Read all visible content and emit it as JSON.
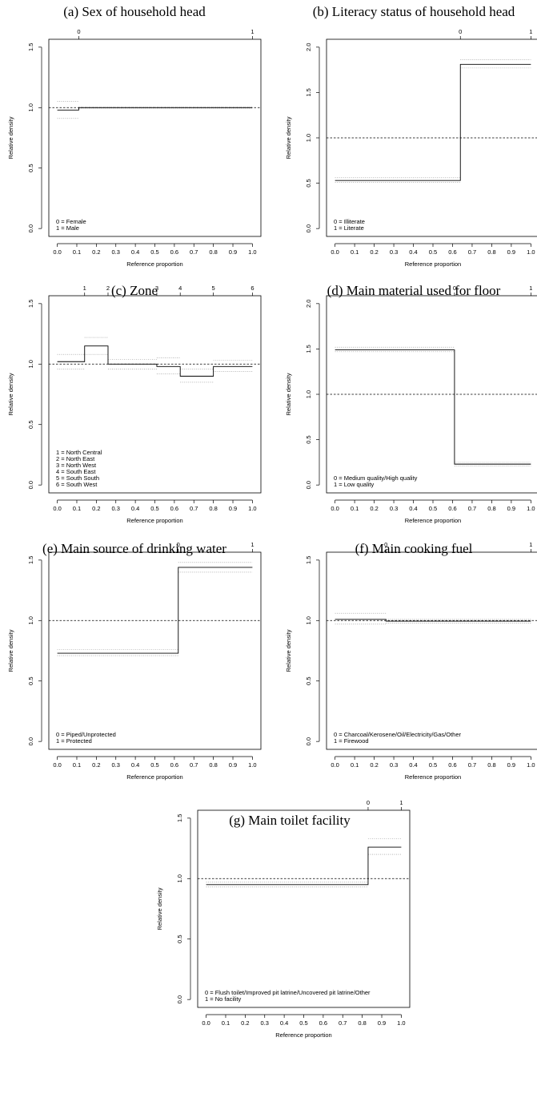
{
  "chart_data": [
    {
      "type": "step",
      "title": "(a) Sex of household head",
      "xlabel": "Reference proportion",
      "ylabel": "Relative density",
      "xlim": [
        0,
        1
      ],
      "ylim": [
        0,
        1.5
      ],
      "x_ticks": [
        "0.0",
        "0.1",
        "0.2",
        "0.3",
        "0.4",
        "0.5",
        "0.6",
        "0.7",
        "0.8",
        "0.9",
        "1.0"
      ],
      "y_ticks": [
        "0.0",
        "0.5",
        "1.0",
        "1.5"
      ],
      "top_axis": {
        "labels": [
          "0",
          "1"
        ],
        "positions": [
          0.11,
          1.0
        ]
      },
      "reference_line": 1.0,
      "steps": [
        {
          "x0": 0.0,
          "x1": 0.11,
          "y": 0.98,
          "lo": 0.91,
          "hi": 1.05
        },
        {
          "x0": 0.11,
          "x1": 1.0,
          "y": 1.0,
          "lo": 0.995,
          "hi": 1.005
        }
      ],
      "legend": [
        "0 = Female",
        "1 = Male"
      ]
    },
    {
      "type": "step",
      "title": "(b) Literacy status of household head",
      "xlabel": "Reference proportion",
      "ylabel": "Relative density",
      "xlim": [
        0,
        1
      ],
      "ylim": [
        0,
        2.0
      ],
      "x_ticks": [
        "0.0",
        "0.1",
        "0.2",
        "0.3",
        "0.4",
        "0.5",
        "0.6",
        "0.7",
        "0.8",
        "0.9",
        "1.0"
      ],
      "y_ticks": [
        "0.0",
        "0.5",
        "1.0",
        "1.5",
        "2.0"
      ],
      "top_axis": {
        "labels": [
          "0",
          "1"
        ],
        "positions": [
          0.64,
          1.0
        ]
      },
      "reference_line": 1.0,
      "steps": [
        {
          "x0": 0.0,
          "x1": 0.64,
          "y": 0.53,
          "lo": 0.51,
          "hi": 0.56
        },
        {
          "x0": 0.64,
          "x1": 1.0,
          "y": 1.81,
          "lo": 1.77,
          "hi": 1.86
        }
      ],
      "legend": [
        "0 = Illiterate",
        "1 = Literate"
      ]
    },
    {
      "type": "step",
      "title": "(c) Zone",
      "xlabel": "Reference proportion",
      "ylabel": "Relative density",
      "xlim": [
        0,
        1
      ],
      "ylim": [
        0,
        1.5
      ],
      "x_ticks": [
        "0.0",
        "0.1",
        "0.2",
        "0.3",
        "0.4",
        "0.5",
        "0.6",
        "0.7",
        "0.8",
        "0.9",
        "1.0"
      ],
      "y_ticks": [
        "0.0",
        "0.5",
        "1.0",
        "1.5"
      ],
      "top_axis": {
        "labels": [
          "1",
          "2",
          "3",
          "4",
          "5",
          "6"
        ],
        "positions": [
          0.14,
          0.26,
          0.51,
          0.63,
          0.8,
          1.0
        ]
      },
      "reference_line": 1.0,
      "steps": [
        {
          "x0": 0.0,
          "x1": 0.14,
          "y": 1.02,
          "lo": 0.96,
          "hi": 1.08
        },
        {
          "x0": 0.14,
          "x1": 0.26,
          "y": 1.15,
          "lo": 1.08,
          "hi": 1.22
        },
        {
          "x0": 0.26,
          "x1": 0.51,
          "y": 1.0,
          "lo": 0.96,
          "hi": 1.04
        },
        {
          "x0": 0.51,
          "x1": 0.63,
          "y": 0.98,
          "lo": 0.92,
          "hi": 1.05
        },
        {
          "x0": 0.63,
          "x1": 0.8,
          "y": 0.9,
          "lo": 0.85,
          "hi": 0.96
        },
        {
          "x0": 0.8,
          "x1": 1.0,
          "y": 0.98,
          "lo": 0.94,
          "hi": 1.03
        }
      ],
      "legend": [
        "1 = North Central",
        "2 = North East",
        "3 = North West",
        "4 = South East",
        "5 = South South",
        "6 = South West"
      ]
    },
    {
      "type": "step",
      "title": "(d) Main material used for floor",
      "xlabel": "Reference proportion",
      "ylabel": "Relative density",
      "xlim": [
        0,
        1
      ],
      "ylim": [
        0,
        2.0
      ],
      "x_ticks": [
        "0.0",
        "0.1",
        "0.2",
        "0.3",
        "0.4",
        "0.5",
        "0.6",
        "0.7",
        "0.8",
        "0.9",
        "1.0"
      ],
      "y_ticks": [
        "0.0",
        "0.5",
        "1.0",
        "1.5",
        "2.0"
      ],
      "top_axis": {
        "labels": [
          "0",
          "1"
        ],
        "positions": [
          0.61,
          1.0
        ]
      },
      "reference_line": 1.0,
      "steps": [
        {
          "x0": 0.0,
          "x1": 0.61,
          "y": 1.49,
          "lo": 1.47,
          "hi": 1.52
        },
        {
          "x0": 0.61,
          "x1": 1.0,
          "y": 0.23,
          "lo": 0.21,
          "hi": 0.25
        }
      ],
      "legend": [
        "0 = Medium quality/High quality",
        "1 = Low quality"
      ]
    },
    {
      "type": "step",
      "title": "(e) Main source of drinking water",
      "xlabel": "Reference proportion",
      "ylabel": "Relative density",
      "xlim": [
        0,
        1
      ],
      "ylim": [
        0,
        1.5
      ],
      "x_ticks": [
        "0.0",
        "0.1",
        "0.2",
        "0.3",
        "0.4",
        "0.5",
        "0.6",
        "0.7",
        "0.8",
        "0.9",
        "1.0"
      ],
      "y_ticks": [
        "0.0",
        "0.5",
        "1.0",
        "1.5"
      ],
      "top_axis": {
        "labels": [
          "0",
          "1"
        ],
        "positions": [
          0.62,
          1.0
        ]
      },
      "reference_line": 1.0,
      "steps": [
        {
          "x0": 0.0,
          "x1": 0.62,
          "y": 0.73,
          "lo": 0.71,
          "hi": 0.76
        },
        {
          "x0": 0.62,
          "x1": 1.0,
          "y": 1.44,
          "lo": 1.4,
          "hi": 1.48
        }
      ],
      "legend": [
        "0 = Piped/Unprotected",
        "1 = Protected"
      ]
    },
    {
      "type": "step",
      "title": "(f) Main cooking fuel",
      "xlabel": "Reference proportion",
      "ylabel": "Relative density",
      "xlim": [
        0,
        1
      ],
      "ylim": [
        0,
        1.5
      ],
      "x_ticks": [
        "0.0",
        "0.1",
        "0.2",
        "0.3",
        "0.4",
        "0.5",
        "0.6",
        "0.7",
        "0.8",
        "0.9",
        "1.0"
      ],
      "y_ticks": [
        "0.0",
        "0.5",
        "1.0",
        "1.5"
      ],
      "top_axis": {
        "labels": [
          "0",
          "1"
        ],
        "positions": [
          0.26,
          1.0
        ]
      },
      "reference_line": 1.0,
      "steps": [
        {
          "x0": 0.0,
          "x1": 0.26,
          "y": 1.01,
          "lo": 0.97,
          "hi": 1.06
        },
        {
          "x0": 0.26,
          "x1": 1.0,
          "y": 0.995,
          "lo": 0.98,
          "hi": 1.01
        }
      ],
      "legend": [
        "0 = Charcoal/Kerosene/Oil/Electricity/Gas/Other",
        "1 = Firewood"
      ]
    },
    {
      "type": "step",
      "title": "(g) Main toilet facility",
      "xlabel": "Reference proportion",
      "ylabel": "Relative density",
      "xlim": [
        0,
        1
      ],
      "ylim": [
        0,
        1.5
      ],
      "x_ticks": [
        "0.0",
        "0.1",
        "0.2",
        "0.3",
        "0.4",
        "0.5",
        "0.6",
        "0.7",
        "0.8",
        "0.9",
        "1.0"
      ],
      "y_ticks": [
        "0.0",
        "0.5",
        "1.0",
        "1.5"
      ],
      "top_axis": {
        "labels": [
          "0",
          "1"
        ],
        "positions": [
          0.83,
          1.0
        ]
      },
      "reference_line": 1.0,
      "steps": [
        {
          "x0": 0.0,
          "x1": 0.83,
          "y": 0.95,
          "lo": 0.93,
          "hi": 0.97
        },
        {
          "x0": 0.83,
          "x1": 1.0,
          "y": 1.26,
          "lo": 1.2,
          "hi": 1.33
        }
      ],
      "legend": [
        "0 = Flush toilet/Improved pit latrine/Uncovered pit latrine/Other",
        "1 = No facility"
      ]
    }
  ]
}
